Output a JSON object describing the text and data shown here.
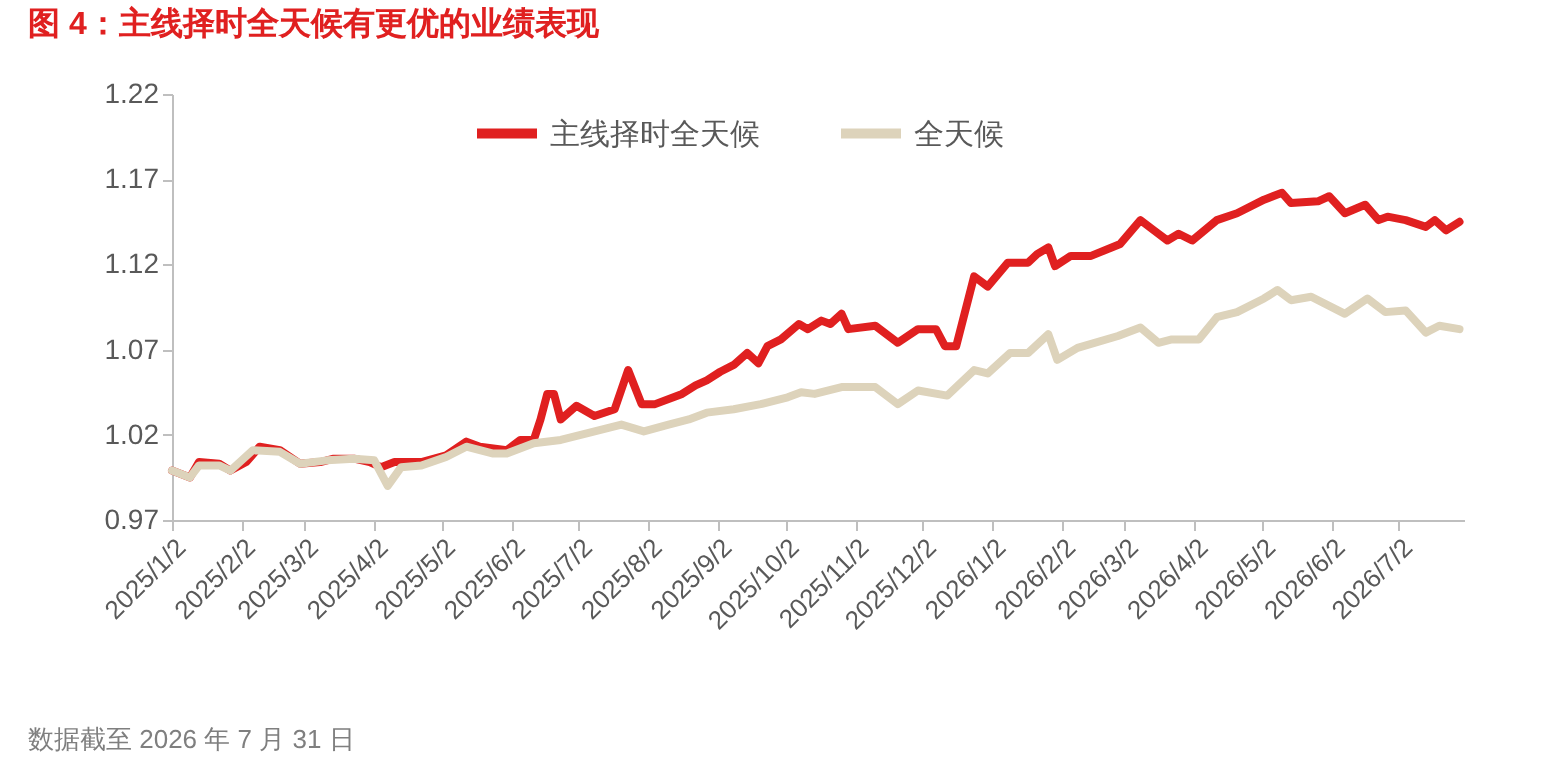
{
  "chart_data": {
    "type": "line",
    "title": "图 4：主线择时全天候有更优的业绩表现",
    "annotations": [
      "数据截至 2026 年 7 月 31 日"
    ],
    "series": [
      {
        "name": "主线择时全天候",
        "color": "#e02020",
        "x": [
          "2025-01-02",
          "2025-01-10",
          "2025-01-14",
          "2025-01-23",
          "2025-01-28",
          "2025-02-04",
          "2025-02-10",
          "2025-02-19",
          "2025-02-28",
          "2025-03-09",
          "2025-03-15",
          "2025-03-24",
          "2025-03-31",
          "2025-04-05",
          "2025-04-11",
          "2025-04-23",
          "2025-05-04",
          "2025-05-13",
          "2025-05-19",
          "2025-05-31",
          "2025-06-06",
          "2025-06-12",
          "2025-06-15",
          "2025-06-18",
          "2025-06-21",
          "2025-06-24",
          "2025-07-01",
          "2025-07-09",
          "2025-07-18",
          "2025-07-24",
          "2025-07-30",
          "2025-08-05",
          "2025-08-17",
          "2025-08-23",
          "2025-08-28",
          "2025-09-03",
          "2025-09-09",
          "2025-09-15",
          "2025-09-20",
          "2025-09-24",
          "2025-09-30",
          "2025-10-08",
          "2025-10-12",
          "2025-10-18",
          "2025-10-22",
          "2025-10-27",
          "2025-10-30",
          "2025-11-11",
          "2025-11-21",
          "2025-11-30",
          "2025-12-08",
          "2025-12-12",
          "2025-12-17",
          "2025-12-25",
          "2025-12-31",
          "2026-01-09",
          "2026-01-18",
          "2026-01-22",
          "2026-01-27",
          "2026-01-30",
          "2026-02-06",
          "2026-02-15",
          "2026-02-28",
          "2026-03-09",
          "2026-03-15",
          "2026-03-21",
          "2026-03-26",
          "2026-04-01",
          "2026-04-12",
          "2026-04-21",
          "2026-05-03",
          "2026-05-11",
          "2026-05-15",
          "2026-05-27",
          "2026-06-01",
          "2026-06-08",
          "2026-06-17",
          "2026-06-23",
          "2026-06-27",
          "2026-07-05",
          "2026-07-14",
          "2026-07-18",
          "2026-07-23",
          "2026-07-29"
        ],
        "values": [
          0.999,
          0.995,
          1.004,
          1.003,
          0.999,
          1.004,
          1.013,
          1.011,
          1.003,
          1.004,
          1.006,
          1.006,
          1.004,
          1.001,
          1.004,
          1.004,
          1.008,
          1.016,
          1.013,
          1.011,
          1.017,
          1.017,
          1.029,
          1.044,
          1.044,
          1.029,
          1.037,
          1.031,
          1.035,
          1.058,
          1.038,
          1.038,
          1.044,
          1.049,
          1.052,
          1.057,
          1.061,
          1.068,
          1.062,
          1.072,
          1.076,
          1.085,
          1.082,
          1.087,
          1.085,
          1.091,
          1.082,
          1.084,
          1.074,
          1.082,
          1.082,
          1.072,
          1.072,
          1.113,
          1.107,
          1.121,
          1.121,
          1.126,
          1.13,
          1.119,
          1.125,
          1.125,
          1.132,
          1.146,
          1.14,
          1.134,
          1.138,
          1.134,
          1.146,
          1.15,
          1.158,
          1.162,
          1.156,
          1.157,
          1.16,
          1.15,
          1.155,
          1.146,
          1.148,
          1.146,
          1.142,
          1.146,
          1.14,
          1.145
        ]
      },
      {
        "name": "全天候",
        "color": "#ddd3bb",
        "x": [
          "2025-01-02",
          "2025-01-10",
          "2025-01-14",
          "2025-01-23",
          "2025-01-28",
          "2025-02-07",
          "2025-02-19",
          "2025-02-28",
          "2025-03-12",
          "2025-03-24",
          "2025-04-02",
          "2025-04-08",
          "2025-04-14",
          "2025-04-23",
          "2025-05-04",
          "2025-05-13",
          "2025-05-25",
          "2025-05-31",
          "2025-06-12",
          "2025-06-24",
          "2025-07-06",
          "2025-07-21",
          "2025-07-31",
          "2025-08-11",
          "2025-08-20",
          "2025-08-28",
          "2025-09-09",
          "2025-09-21",
          "2025-10-03",
          "2025-10-09",
          "2025-10-15",
          "2025-10-27",
          "2025-11-11",
          "2025-11-21",
          "2025-11-30",
          "2025-12-13",
          "2025-12-25",
          "2025-12-31",
          "2026-01-10",
          "2026-01-18",
          "2026-01-27",
          "2026-01-31",
          "2026-02-09",
          "2026-02-27",
          "2026-03-09",
          "2026-03-17",
          "2026-03-23",
          "2026-04-04",
          "2026-04-12",
          "2026-04-21",
          "2026-05-03",
          "2026-05-09",
          "2026-05-15",
          "2026-05-24",
          "2026-06-08",
          "2026-06-18",
          "2026-06-26",
          "2026-07-05",
          "2026-07-14",
          "2026-07-20",
          "2026-07-29"
        ],
        "values": [
          0.999,
          0.995,
          1.002,
          1.002,
          0.999,
          1.011,
          1.01,
          1.003,
          1.005,
          1.006,
          1.005,
          0.99,
          1.001,
          1.002,
          1.007,
          1.013,
          1.009,
          1.009,
          1.015,
          1.017,
          1.021,
          1.026,
          1.022,
          1.026,
          1.029,
          1.033,
          1.035,
          1.038,
          1.042,
          1.045,
          1.044,
          1.048,
          1.048,
          1.038,
          1.046,
          1.043,
          1.058,
          1.056,
          1.068,
          1.068,
          1.079,
          1.064,
          1.071,
          1.078,
          1.083,
          1.074,
          1.076,
          1.076,
          1.089,
          1.092,
          1.1,
          1.105,
          1.099,
          1.101,
          1.091,
          1.1,
          1.092,
          1.093,
          1.08,
          1.084,
          1.082
        ]
      }
    ],
    "xlim": [
      "2025-01-02",
      "2026-07-31"
    ],
    "xticks": [
      {
        "value": "2025-01-02",
        "label": "2025/1/2"
      },
      {
        "value": "2025-02-02",
        "label": "2025/2/2"
      },
      {
        "value": "2025-03-02",
        "label": "2025/3/2"
      },
      {
        "value": "2025-04-02",
        "label": "2025/4/2"
      },
      {
        "value": "2025-05-02",
        "label": "2025/5/2"
      },
      {
        "value": "2025-06-02",
        "label": "2025/6/2"
      },
      {
        "value": "2025-07-02",
        "label": "2025/7/2"
      },
      {
        "value": "2025-08-02",
        "label": "2025/8/2"
      },
      {
        "value": "2025-09-02",
        "label": "2025/9/2"
      },
      {
        "value": "2025-10-02",
        "label": "2025/10/2"
      },
      {
        "value": "2025-11-02",
        "label": "2025/11/2"
      },
      {
        "value": "2025-12-02",
        "label": "2025/12/2"
      },
      {
        "value": "2026-01-02",
        "label": "2026/1/2"
      },
      {
        "value": "2026-02-02",
        "label": "2026/2/2"
      },
      {
        "value": "2026-03-02",
        "label": "2026/3/2"
      },
      {
        "value": "2026-04-02",
        "label": "2026/4/2"
      },
      {
        "value": "2026-05-02",
        "label": "2026/5/2"
      },
      {
        "value": "2026-06-02",
        "label": "2026/6/2"
      },
      {
        "value": "2026-07-02",
        "label": "2026/7/2"
      }
    ],
    "ylim": [
      0.97,
      1.22
    ],
    "yticks": [
      {
        "value": 0.97,
        "label": "0.97"
      },
      {
        "value": 1.02,
        "label": "1.02"
      },
      {
        "value": 1.07,
        "label": "1.07"
      },
      {
        "value": 1.12,
        "label": "1.12"
      },
      {
        "value": 1.17,
        "label": "1.17"
      },
      {
        "value": 1.22,
        "label": "1.22"
      }
    ],
    "grid": false,
    "legend": "top",
    "line_style": "solid",
    "marker": "none"
  }
}
